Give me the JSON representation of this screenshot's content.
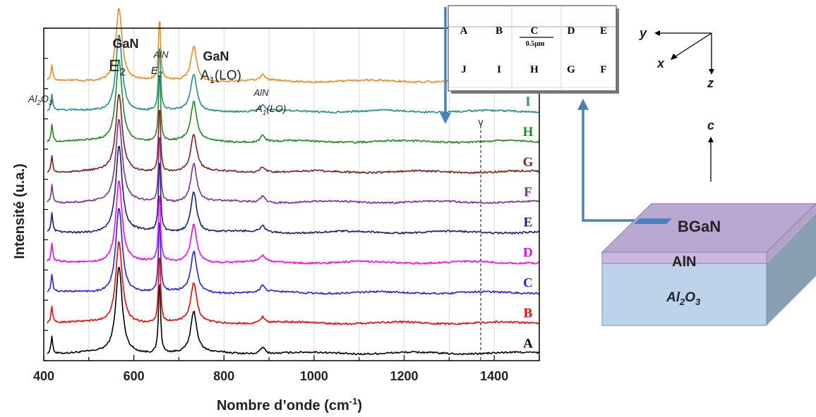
{
  "chart_data": {
    "type": "line",
    "xlabel": "Nombre d’onde (cm",
    "xlabel_sup": "-1",
    "xlabel_end": ")",
    "ylabel": "Intensité (u.a.)",
    "xlim": [
      400,
      1500
    ],
    "ylim": [
      0,
      11
    ],
    "x_ticks": [
      400,
      600,
      800,
      1000,
      1200,
      1400
    ],
    "grid": "vertical",
    "y_tick_labels_shown": false,
    "peaks": [
      {
        "pos": 418,
        "amp": 0.6,
        "w": 2.2
      },
      {
        "pos": 567,
        "amp": 2.85,
        "w": 8.5
      },
      {
        "pos": 657,
        "amp": 2.55,
        "w": 2.6
      },
      {
        "pos": 733,
        "amp": 1.35,
        "w": 8.0
      },
      {
        "pos": 886,
        "amp": 0.22,
        "w": 6.0
      }
    ],
    "series": [
      {
        "name": "A",
        "color": "#000000",
        "offset": 0.25,
        "scale": 1.0
      },
      {
        "name": "B",
        "color": "#ff0000",
        "offset": 1.25,
        "scale": 0.95
      },
      {
        "name": "C",
        "color": "#1f1fff",
        "offset": 2.25,
        "scale": 1.0
      },
      {
        "name": "D",
        "color": "#ff00ff",
        "offset": 3.25,
        "scale": 0.95
      },
      {
        "name": "E",
        "color": "#1a1a8c",
        "offset": 4.25,
        "scale": 1.0
      },
      {
        "name": "F",
        "color": "#7f2f91",
        "offset": 5.25,
        "scale": 0.95
      },
      {
        "name": "G",
        "color": "#8b1a1a",
        "offset": 6.25,
        "scale": 0.9
      },
      {
        "name": "H",
        "color": "#1c8c1c",
        "offset": 7.25,
        "scale": 0.95
      },
      {
        "name": "I",
        "color": "#1f8f8f",
        "offset": 8.25,
        "scale": 0.9
      },
      {
        "name": "J",
        "color": "#f28a1c",
        "offset": 9.25,
        "scale": 0.85
      }
    ],
    "dashed_line_x": 1370,
    "dashed_marker": "v",
    "annotations": {
      "al2o3": {
        "base": "Al",
        "sub1": "2",
        "mid": "O",
        "sub2": "3"
      },
      "gan_e2": {
        "line1": "GaN",
        "line2": "E",
        "sub": "2"
      },
      "aln_e2": {
        "line1": "AlN",
        "line2": "E",
        "sub": "2"
      },
      "gan_a1": {
        "line1": "GaN",
        "line2": "A",
        "sub": "1",
        "tail": "(LO)"
      },
      "aln_a1": {
        "line1": "AlN",
        "line2": "A",
        "sub": "1",
        "tail": "(LO)"
      }
    }
  },
  "inset_grid": {
    "top_labels": [
      "A",
      "B",
      "C",
      "D",
      "E"
    ],
    "bottom_labels": [
      "J",
      "I",
      "H",
      "G",
      "F"
    ],
    "scale_label": "0.5µm"
  },
  "axes_diagram": {
    "y": "y",
    "x": "x",
    "z": "z",
    "c": "c"
  },
  "layers": {
    "top": "BGaN",
    "middle": "AlN",
    "substrate_base": "Al",
    "substrate_sub1": "2",
    "substrate_mid": "O",
    "substrate_sub2": "3"
  },
  "colors": {
    "arrow": "#4a7fc1",
    "bgan": "#b9a8d2",
    "aln": "#c8b9de",
    "substrate": "#bcd3ea"
  }
}
